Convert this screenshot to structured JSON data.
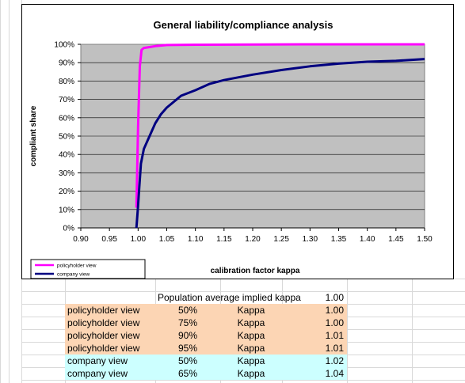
{
  "chart_data": {
    "type": "line",
    "title": "General liability/compliance analysis",
    "xlabel": "calibration factor kappa",
    "ylabel": "compliant share",
    "xlim": [
      0.9,
      1.5
    ],
    "ylim": [
      0,
      1
    ],
    "x_ticks": [
      "0.90",
      "0.95",
      "1.00",
      "1.05",
      "1.10",
      "1.15",
      "1.20",
      "1.25",
      "1.30",
      "1.35",
      "1.40",
      "1.45",
      "1.50"
    ],
    "y_ticks": [
      "0%",
      "10%",
      "20%",
      "30%",
      "40%",
      "50%",
      "60%",
      "70%",
      "80%",
      "90%",
      "100%"
    ],
    "grid": "horizontal",
    "plot_background": "#c0c0c0",
    "legend_position": "bottom-left",
    "series": [
      {
        "name": "policyholder view",
        "color": "#ff00ff",
        "points": [
          [
            0.997,
            0.11
          ],
          [
            1.0,
            0.55
          ],
          [
            1.003,
            0.88
          ],
          [
            1.006,
            0.97
          ],
          [
            1.01,
            0.98
          ],
          [
            1.02,
            0.985
          ],
          [
            1.03,
            0.99
          ],
          [
            1.05,
            0.996
          ],
          [
            1.1,
            0.998
          ],
          [
            1.2,
            0.999
          ],
          [
            1.3,
            1.0
          ],
          [
            1.4,
            1.0
          ],
          [
            1.5,
            1.0
          ]
        ]
      },
      {
        "name": "company view",
        "color": "#000080",
        "points": [
          [
            0.997,
            0.0
          ],
          [
            1.0,
            0.12
          ],
          [
            1.002,
            0.22
          ],
          [
            1.005,
            0.35
          ],
          [
            1.01,
            0.43
          ],
          [
            1.02,
            0.5
          ],
          [
            1.03,
            0.57
          ],
          [
            1.04,
            0.62
          ],
          [
            1.05,
            0.655
          ],
          [
            1.075,
            0.72
          ],
          [
            1.1,
            0.75
          ],
          [
            1.125,
            0.785
          ],
          [
            1.15,
            0.805
          ],
          [
            1.2,
            0.835
          ],
          [
            1.25,
            0.86
          ],
          [
            1.3,
            0.88
          ],
          [
            1.35,
            0.895
          ],
          [
            1.4,
            0.905
          ],
          [
            1.45,
            0.91
          ],
          [
            1.5,
            0.92
          ]
        ]
      }
    ]
  },
  "table": {
    "header": {
      "label": "Population average implied kappa",
      "value": "1.00"
    },
    "rows": [
      {
        "view": "policyholder view",
        "pct": "50%",
        "label": "Kappa",
        "value": "1.00",
        "fill": "#fcd5b4"
      },
      {
        "view": "policyholder view",
        "pct": "75%",
        "label": "Kappa",
        "value": "1.00",
        "fill": "#fcd5b4"
      },
      {
        "view": "policyholder view",
        "pct": "90%",
        "label": "Kappa",
        "value": "1.01",
        "fill": "#fcd5b4"
      },
      {
        "view": "policyholder view",
        "pct": "95%",
        "label": "Kappa",
        "value": "1.01",
        "fill": "#fcd5b4"
      },
      {
        "view": "company view",
        "pct": "50%",
        "label": "Kappa",
        "value": "1.02",
        "fill": "#ccffff"
      },
      {
        "view": "company view",
        "pct": "65%",
        "label": "Kappa",
        "value": "1.04",
        "fill": "#ccffff"
      }
    ]
  }
}
